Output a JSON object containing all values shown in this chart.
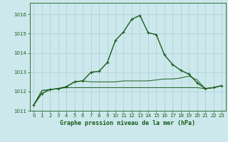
{
  "title": "Graphe pression niveau de la mer (hPa)",
  "background_color": "#cce8ec",
  "grid_color": "#aacdd4",
  "line_color": "#1a5c1a",
  "xlim": [
    -0.5,
    23.5
  ],
  "ylim": [
    1011,
    1016.6
  ],
  "yticks": [
    1011,
    1012,
    1013,
    1014,
    1015,
    1016
  ],
  "xticks": [
    0,
    1,
    2,
    3,
    4,
    5,
    6,
    7,
    8,
    9,
    10,
    11,
    12,
    13,
    14,
    15,
    16,
    17,
    18,
    19,
    20,
    21,
    22,
    23
  ],
  "series1": [
    1011.3,
    1011.9,
    1012.1,
    1012.15,
    1012.25,
    1012.5,
    1012.55,
    1013.0,
    1013.05,
    1013.5,
    1014.65,
    1015.1,
    1015.75,
    1015.95,
    1015.05,
    1014.95,
    1013.9,
    1013.4,
    1013.1,
    1012.9,
    1012.45,
    1012.15,
    1012.2,
    1012.3
  ],
  "series2": [
    1011.3,
    1012.05,
    1012.1,
    1012.15,
    1012.25,
    1012.5,
    1012.55,
    1012.5,
    1012.5,
    1012.5,
    1012.5,
    1012.55,
    1012.55,
    1012.55,
    1012.55,
    1012.6,
    1012.65,
    1012.65,
    1012.7,
    1012.8,
    1012.6,
    1012.15,
    1012.2,
    1012.3
  ],
  "series3": [
    1011.3,
    1012.05,
    1012.1,
    1012.15,
    1012.2,
    1012.2,
    1012.2,
    1012.2,
    1012.2,
    1012.2,
    1012.2,
    1012.2,
    1012.2,
    1012.2,
    1012.2,
    1012.2,
    1012.2,
    1012.2,
    1012.2,
    1012.2,
    1012.2,
    1012.15,
    1012.2,
    1012.3
  ]
}
